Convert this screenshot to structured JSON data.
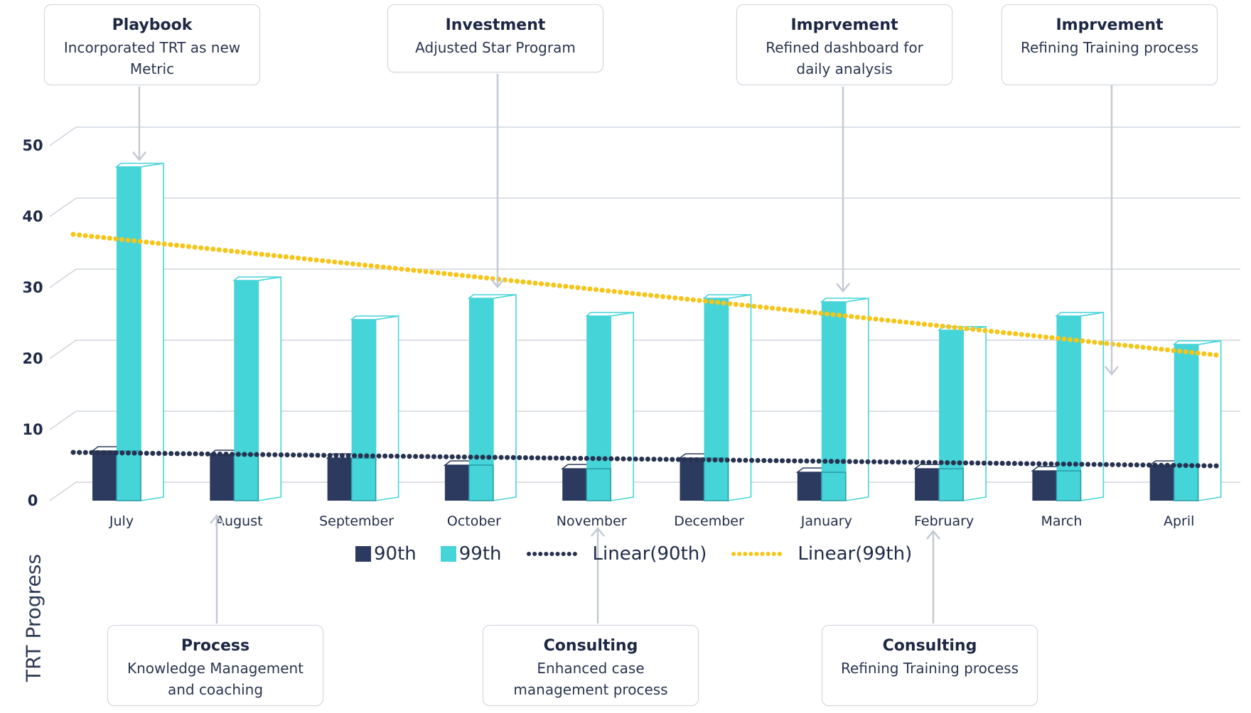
{
  "y_axis_title": "TRT Progress",
  "colors": {
    "series_90": "#2b3a5e",
    "series_99": "#45d4d8",
    "trend_90": "#26324f",
    "trend_99": "#f5c518",
    "grid": "#cfd5dd",
    "arrow": "#c4cad3"
  },
  "legend": [
    {
      "label": "90th",
      "kind": "swatch",
      "color": "#2b3a5e"
    },
    {
      "label": "99th",
      "kind": "swatch",
      "color": "#45d4d8"
    },
    {
      "label": "Linear(90th)",
      "kind": "dots",
      "color": "#26324f"
    },
    {
      "label": "Linear(99th)",
      "kind": "dots",
      "color": "#f5c518"
    }
  ],
  "callouts_top": [
    {
      "title": "Playbook",
      "desc": "Incorporated TRT as new Metric",
      "month": "July"
    },
    {
      "title": "Investment",
      "desc": "Adjusted Star Program",
      "month": "October"
    },
    {
      "title": "Imprvement",
      "desc": "Refined dashboard for daily analysis",
      "month": "January"
    },
    {
      "title": "Imprvement",
      "desc": "Refining Training process",
      "month": "March"
    }
  ],
  "callouts_bottom": [
    {
      "title": "Process",
      "desc": "Knowledge Management and coaching",
      "month": "August"
    },
    {
      "title": "Consulting",
      "desc": "Enhanced case management process",
      "month": "November"
    },
    {
      "title": "Consulting",
      "desc": "Refining Training process",
      "month": "February"
    }
  ],
  "chart_data": {
    "type": "bar",
    "title": "",
    "xlabel": "",
    "ylabel": "TRT Progress",
    "ylim": [
      0,
      50
    ],
    "yticks": [
      0,
      10,
      20,
      30,
      40,
      50
    ],
    "grid": true,
    "legend_position": "bottom",
    "categories": [
      "July",
      "August",
      "September",
      "October",
      "November",
      "December",
      "January",
      "February",
      "March",
      "April"
    ],
    "series": [
      {
        "name": "90th",
        "values": [
          7,
          6.5,
          6,
          5,
          4.5,
          6,
          4,
          4.5,
          4.2,
          5
        ]
      },
      {
        "name": "99th",
        "values": [
          47,
          31,
          25.5,
          28.5,
          26,
          28.5,
          28,
          24,
          26,
          22
        ]
      }
    ],
    "trendlines": [
      {
        "name": "Linear(90th)",
        "of": "90th",
        "start": 6.8,
        "end": 4.9
      },
      {
        "name": "Linear(99th)",
        "of": "99th",
        "start": 37.5,
        "end": 20.5
      }
    ]
  }
}
